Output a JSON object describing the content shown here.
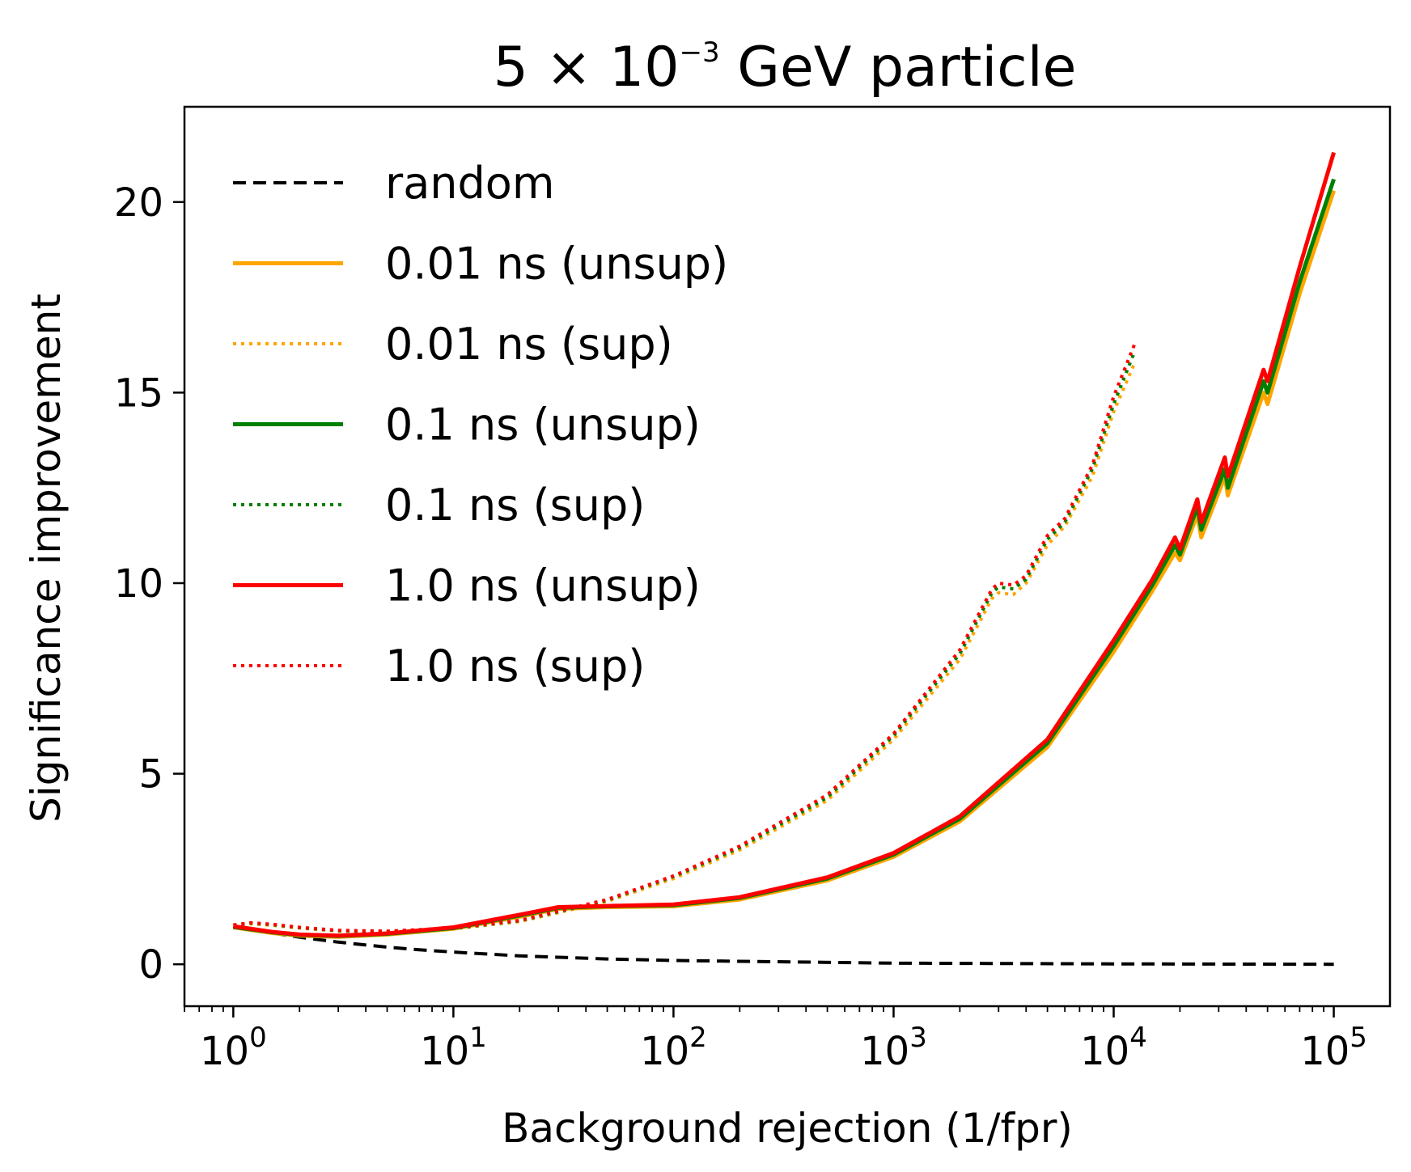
{
  "chart_data": {
    "type": "line",
    "title": {
      "base": "5 × 10",
      "exponent": "−3",
      "suffix": " GeV particle"
    },
    "xlabel": "Background rejection (1/fpr)",
    "ylabel": "Significance improvement",
    "xscale": "log",
    "xlim": [
      0.6,
      180000
    ],
    "ylim": [
      -1.1,
      22.5
    ],
    "grid": false,
    "legend_position": "top-left",
    "xticks": [
      {
        "value": 1,
        "base": "10",
        "exp": "0"
      },
      {
        "value": 10,
        "base": "10",
        "exp": "1"
      },
      {
        "value": 100,
        "base": "10",
        "exp": "2"
      },
      {
        "value": 1000,
        "base": "10",
        "exp": "3"
      },
      {
        "value": 10000,
        "base": "10",
        "exp": "4"
      },
      {
        "value": 100000,
        "base": "10",
        "exp": "5"
      }
    ],
    "yticks": [
      {
        "value": 0,
        "label": "0"
      },
      {
        "value": 5,
        "label": "5"
      },
      {
        "value": 10,
        "label": "10"
      },
      {
        "value": 15,
        "label": "15"
      },
      {
        "value": 20,
        "label": "20"
      }
    ],
    "series": [
      {
        "name": "random",
        "color": "#000000",
        "style": "dashed",
        "x": [
          1,
          1.5,
          2,
          3,
          5,
          7,
          10,
          20,
          50,
          100,
          1000,
          10000,
          100000
        ],
        "y": [
          1.0,
          0.82,
          0.71,
          0.58,
          0.45,
          0.38,
          0.32,
          0.22,
          0.14,
          0.1,
          0.03,
          0.01,
          0.0
        ]
      },
      {
        "name": "0.01 ns (unsup)",
        "color": "#ffa500",
        "style": "solid",
        "x": [
          1,
          1.5,
          2,
          3,
          5,
          10,
          20,
          30,
          50,
          100,
          200,
          500,
          1000,
          2000,
          5000,
          10000,
          15000,
          19000,
          20000,
          24000,
          25000,
          32000,
          33000,
          48000,
          50000,
          70000,
          100000
        ],
        "y": [
          0.97,
          0.82,
          0.75,
          0.72,
          0.78,
          0.93,
          1.25,
          1.45,
          1.5,
          1.52,
          1.7,
          2.2,
          2.82,
          3.75,
          5.7,
          8.2,
          9.8,
          10.8,
          10.6,
          11.8,
          11.2,
          12.8,
          12.3,
          15.0,
          14.7,
          17.6,
          20.3
        ]
      },
      {
        "name": "0.01 ns (sup)",
        "color": "#ffa500",
        "style": "dotted",
        "x": [
          1,
          1.2,
          1.5,
          2,
          3,
          5,
          10,
          20,
          50,
          100,
          200,
          500,
          1000,
          2000,
          2800,
          3000,
          3500,
          4000,
          5000,
          6000,
          8000,
          10000,
          12500
        ],
        "y": [
          1.02,
          1.06,
          1.02,
          0.95,
          0.87,
          0.85,
          0.93,
          1.12,
          1.65,
          2.25,
          3.0,
          4.3,
          5.9,
          8.0,
          9.6,
          9.75,
          9.7,
          10.0,
          11.0,
          11.5,
          12.8,
          14.5,
          15.8
        ]
      },
      {
        "name": "0.1 ns (unsup)",
        "color": "#008000",
        "style": "solid",
        "x": [
          1,
          1.5,
          2,
          3,
          5,
          10,
          20,
          30,
          50,
          100,
          200,
          500,
          1000,
          2000,
          5000,
          10000,
          15000,
          19000,
          20000,
          24000,
          25000,
          32000,
          33000,
          48000,
          50000,
          70000,
          100000
        ],
        "y": [
          0.98,
          0.84,
          0.77,
          0.74,
          0.8,
          0.95,
          1.28,
          1.48,
          1.52,
          1.55,
          1.74,
          2.25,
          2.88,
          3.82,
          5.8,
          8.35,
          9.95,
          11.0,
          10.75,
          12.0,
          11.4,
          13.0,
          12.5,
          15.3,
          15.0,
          17.9,
          20.6
        ]
      },
      {
        "name": "0.1 ns (sup)",
        "color": "#008000",
        "style": "dotted",
        "x": [
          1,
          1.2,
          1.5,
          2,
          3,
          5,
          10,
          20,
          50,
          100,
          200,
          500,
          1000,
          2000,
          2800,
          3000,
          3500,
          4000,
          5000,
          6000,
          8000,
          10000,
          12500
        ],
        "y": [
          1.03,
          1.08,
          1.04,
          0.96,
          0.88,
          0.86,
          0.94,
          1.14,
          1.68,
          2.3,
          3.06,
          4.38,
          6.0,
          8.15,
          9.75,
          9.9,
          9.85,
          10.1,
          11.15,
          11.6,
          13.0,
          14.7,
          16.1
        ]
      },
      {
        "name": "1.0 ns (unsup)",
        "color": "#ff0000",
        "style": "solid",
        "x": [
          1,
          1.5,
          2,
          3,
          5,
          10,
          20,
          30,
          50,
          100,
          200,
          500,
          1000,
          2000,
          5000,
          10000,
          15000,
          19000,
          20000,
          24000,
          25000,
          32000,
          33000,
          48000,
          50000,
          70000,
          100000
        ],
        "y": [
          1.0,
          0.85,
          0.78,
          0.75,
          0.81,
          0.97,
          1.3,
          1.5,
          1.53,
          1.57,
          1.76,
          2.28,
          2.92,
          3.88,
          5.9,
          8.5,
          10.1,
          11.2,
          10.9,
          12.2,
          11.6,
          13.3,
          12.8,
          15.6,
          15.3,
          18.3,
          21.3
        ]
      },
      {
        "name": "1.0 ns (sup)",
        "color": "#ff0000",
        "style": "dotted",
        "x": [
          1,
          1.2,
          1.5,
          2,
          3,
          5,
          10,
          20,
          50,
          100,
          200,
          500,
          1000,
          2000,
          2800,
          3000,
          3500,
          4000,
          5000,
          6000,
          8000,
          10000,
          12500
        ],
        "y": [
          1.03,
          1.09,
          1.05,
          0.97,
          0.89,
          0.87,
          0.95,
          1.15,
          1.7,
          2.32,
          3.1,
          4.45,
          6.05,
          8.25,
          9.85,
          10.0,
          9.95,
          10.2,
          11.25,
          11.7,
          13.1,
          14.9,
          16.3
        ]
      }
    ]
  }
}
